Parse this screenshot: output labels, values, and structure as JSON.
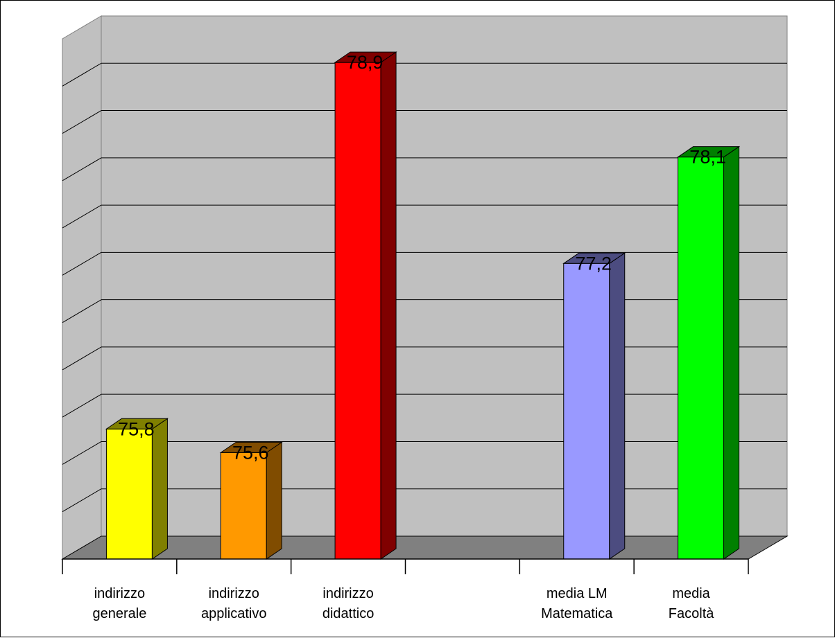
{
  "chart_data": {
    "type": "bar",
    "categories": [
      [
        "indirizzo",
        "generale"
      ],
      [
        "indirizzo",
        "applicativo"
      ],
      [
        "indirizzo",
        "didattico"
      ],
      [
        "",
        ""
      ],
      [
        "media LM",
        "Matematica"
      ],
      [
        "media",
        "Facoltà"
      ]
    ],
    "values": [
      75.8,
      75.6,
      78.9,
      null,
      77.2,
      78.1
    ],
    "value_labels": [
      "75,8",
      "75,6",
      "78,9",
      "",
      "77,2",
      "78,1"
    ],
    "bar_colors": {
      "front": [
        "#FFFF00",
        "#FF9900",
        "#FF0000",
        null,
        "#9999FF",
        "#00FF00"
      ],
      "side": [
        "#808000",
        "#804C00",
        "#800000",
        null,
        "#4C4C80",
        "#008000"
      ]
    },
    "ylim": [
      74.7,
      79.1
    ],
    "grid": true,
    "title": "",
    "xlabel": "",
    "ylabel": ""
  }
}
